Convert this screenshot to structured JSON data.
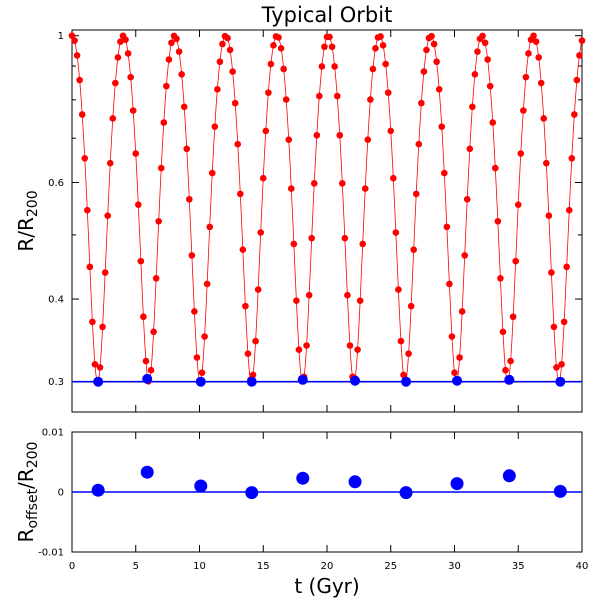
{
  "chart_data": [
    {
      "type": "line",
      "title": "Typical Orbit",
      "ylabel": "R/R",
      "ylabel_sub": "200",
      "xlim": [
        0,
        40
      ],
      "yscale": "log",
      "ylim": [
        0.27,
        1.02
      ],
      "yticks": [
        1,
        0.6,
        0.4,
        0.3
      ],
      "ytick_labels": [
        "1",
        "0.6",
        "0.4",
        "0.3"
      ],
      "yminor_ticks": [
        0.9,
        0.8,
        0.7,
        0.5
      ],
      "reference_line": 0.3,
      "orbit": {
        "period": 4.02,
        "r_max": 1.0,
        "r_min": 0.3,
        "start_time": 0.0,
        "sample_dt": 0.2,
        "color": "#ff0000"
      },
      "pericenter_points": {
        "times": [
          2.05,
          5.9,
          10.1,
          14.1,
          18.1,
          22.2,
          26.2,
          30.2,
          34.3,
          38.3
        ],
        "values": [
          0.3,
          0.303,
          0.3,
          0.3,
          0.302,
          0.301,
          0.3,
          0.301,
          0.302,
          0.3
        ],
        "color": "#0000ff"
      }
    },
    {
      "type": "scatter",
      "ylabel": "R",
      "ylabel_sub": "offset",
      "ylabel_tail": "/R",
      "ylabel_tail_sub": "200",
      "xlabel": "t (Gyr)",
      "xlim": [
        0,
        40
      ],
      "xticks": [
        0,
        5,
        10,
        15,
        20,
        25,
        30,
        35,
        40
      ],
      "xtick_labels": [
        "0",
        "5",
        "10",
        "15",
        "20",
        "25",
        "30",
        "35",
        "40"
      ],
      "ylim": [
        -0.01,
        0.01
      ],
      "yticks": [
        0.01,
        0,
        -0.01
      ],
      "ytick_labels": [
        "0.01",
        "0",
        "-0.01"
      ],
      "reference_line": 0,
      "times": [
        2.05,
        5.9,
        10.1,
        14.1,
        18.1,
        22.2,
        26.2,
        30.2,
        34.3,
        38.3
      ],
      "values": [
        0.0003,
        0.0033,
        0.001,
        -0.0001,
        0.0023,
        0.0017,
        -0.0001,
        0.0014,
        0.0027,
        0.0001
      ],
      "color": "#0000ff"
    }
  ]
}
